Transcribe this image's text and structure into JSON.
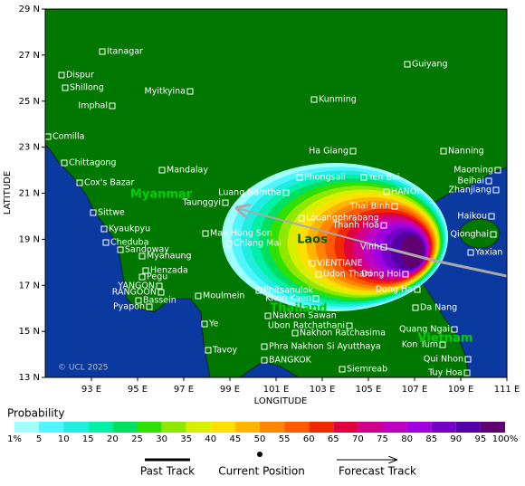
{
  "axes": {
    "latitude_label": "LATITUDE",
    "longitude_label": "LONGITUDE",
    "lat_ticks": [
      {
        "value": 29,
        "label": "29 N"
      },
      {
        "value": 27,
        "label": "27 N"
      },
      {
        "value": 25,
        "label": "25 N"
      },
      {
        "value": 23,
        "label": "23 N"
      },
      {
        "value": 21,
        "label": "21 N"
      },
      {
        "value": 19,
        "label": "19 N"
      },
      {
        "value": 17,
        "label": "17 N"
      },
      {
        "value": 15,
        "label": "15 N"
      },
      {
        "value": 13,
        "label": "13 N"
      }
    ],
    "lon_ticks": [
      {
        "value": 93,
        "label": "93 E"
      },
      {
        "value": 95,
        "label": "95 E"
      },
      {
        "value": 97,
        "label": "97 E"
      },
      {
        "value": 99,
        "label": "99 E"
      },
      {
        "value": 101,
        "label": "101 E"
      },
      {
        "value": 103,
        "label": "103 E"
      },
      {
        "value": 105,
        "label": "105 E"
      },
      {
        "value": 107,
        "label": "107 E"
      },
      {
        "value": 109,
        "label": "109 E"
      },
      {
        "value": 111,
        "label": "111 E"
      }
    ]
  },
  "copyright": "© UCL 2025",
  "countries": [
    "Myanmar",
    "Laos",
    "Thailand",
    "Vietnam"
  ],
  "cities": [
    "Itanagar",
    "Dispur",
    "Shillong",
    "Imphal",
    "Guiyang",
    "Myitkyina",
    "Kunming",
    "Comilla",
    "Chittagong",
    "Cox's Bazar",
    "Mandalay",
    "Ha Giang",
    "Nanning",
    "Phongsali",
    "Yen Bai",
    "Maoming",
    "Beihai",
    "Luang Namtha",
    "HANOI",
    "Zhanjiang",
    "Taunggyi",
    "Sittwe",
    "Thai Binh",
    "Louangphrabang",
    "Haikou",
    "Thanh Hoa",
    "Kyaukpyu",
    "Mae Hong Son",
    "Qionghai",
    "Cheduba",
    "Chiang Mai",
    "Vinh",
    "Sandoway",
    "Yaxian",
    "Myanaung",
    "Henzada",
    "VIENTIANE",
    "Udon Thani",
    "Pegu",
    "Dong Hoi",
    "YANGON",
    "RANGOON",
    "Phitsanulok",
    "Dong Ha",
    "Moulmein",
    "Bassein",
    "Khon Kaen",
    "Pyapon",
    "Da Nang",
    "Nakhon Sawan",
    "Ubon Ratchathani",
    "Ye",
    "Nakhon Ratchasima",
    "Quang Ngai",
    "Kon Tum",
    "Phra Nakhon Si Ayutthaya",
    "Tavoy",
    "BANGKOK",
    "Qui Nhon",
    "Siemreab",
    "Tuy Hoa"
  ],
  "legend": {
    "title": "Probability",
    "labels": [
      "1%",
      5,
      10,
      15,
      20,
      25,
      30,
      35,
      40,
      45,
      50,
      55,
      60,
      65,
      70,
      75,
      80,
      85,
      90,
      95,
      "100%"
    ],
    "colors": [
      "#a0ffff",
      "#50f5ff",
      "#20ece0",
      "#00f0a8",
      "#00e060",
      "#30e000",
      "#90e800",
      "#d8f000",
      "#ffe000",
      "#ffb400",
      "#ff8400",
      "#ff5a00",
      "#f02800",
      "#e00040",
      "#d0008c",
      "#c000c0",
      "#a000e0",
      "#7400c8",
      "#5400a8",
      "#600070"
    ],
    "items": [
      "Past Track",
      "Current Position",
      "Forecast Track"
    ]
  }
}
